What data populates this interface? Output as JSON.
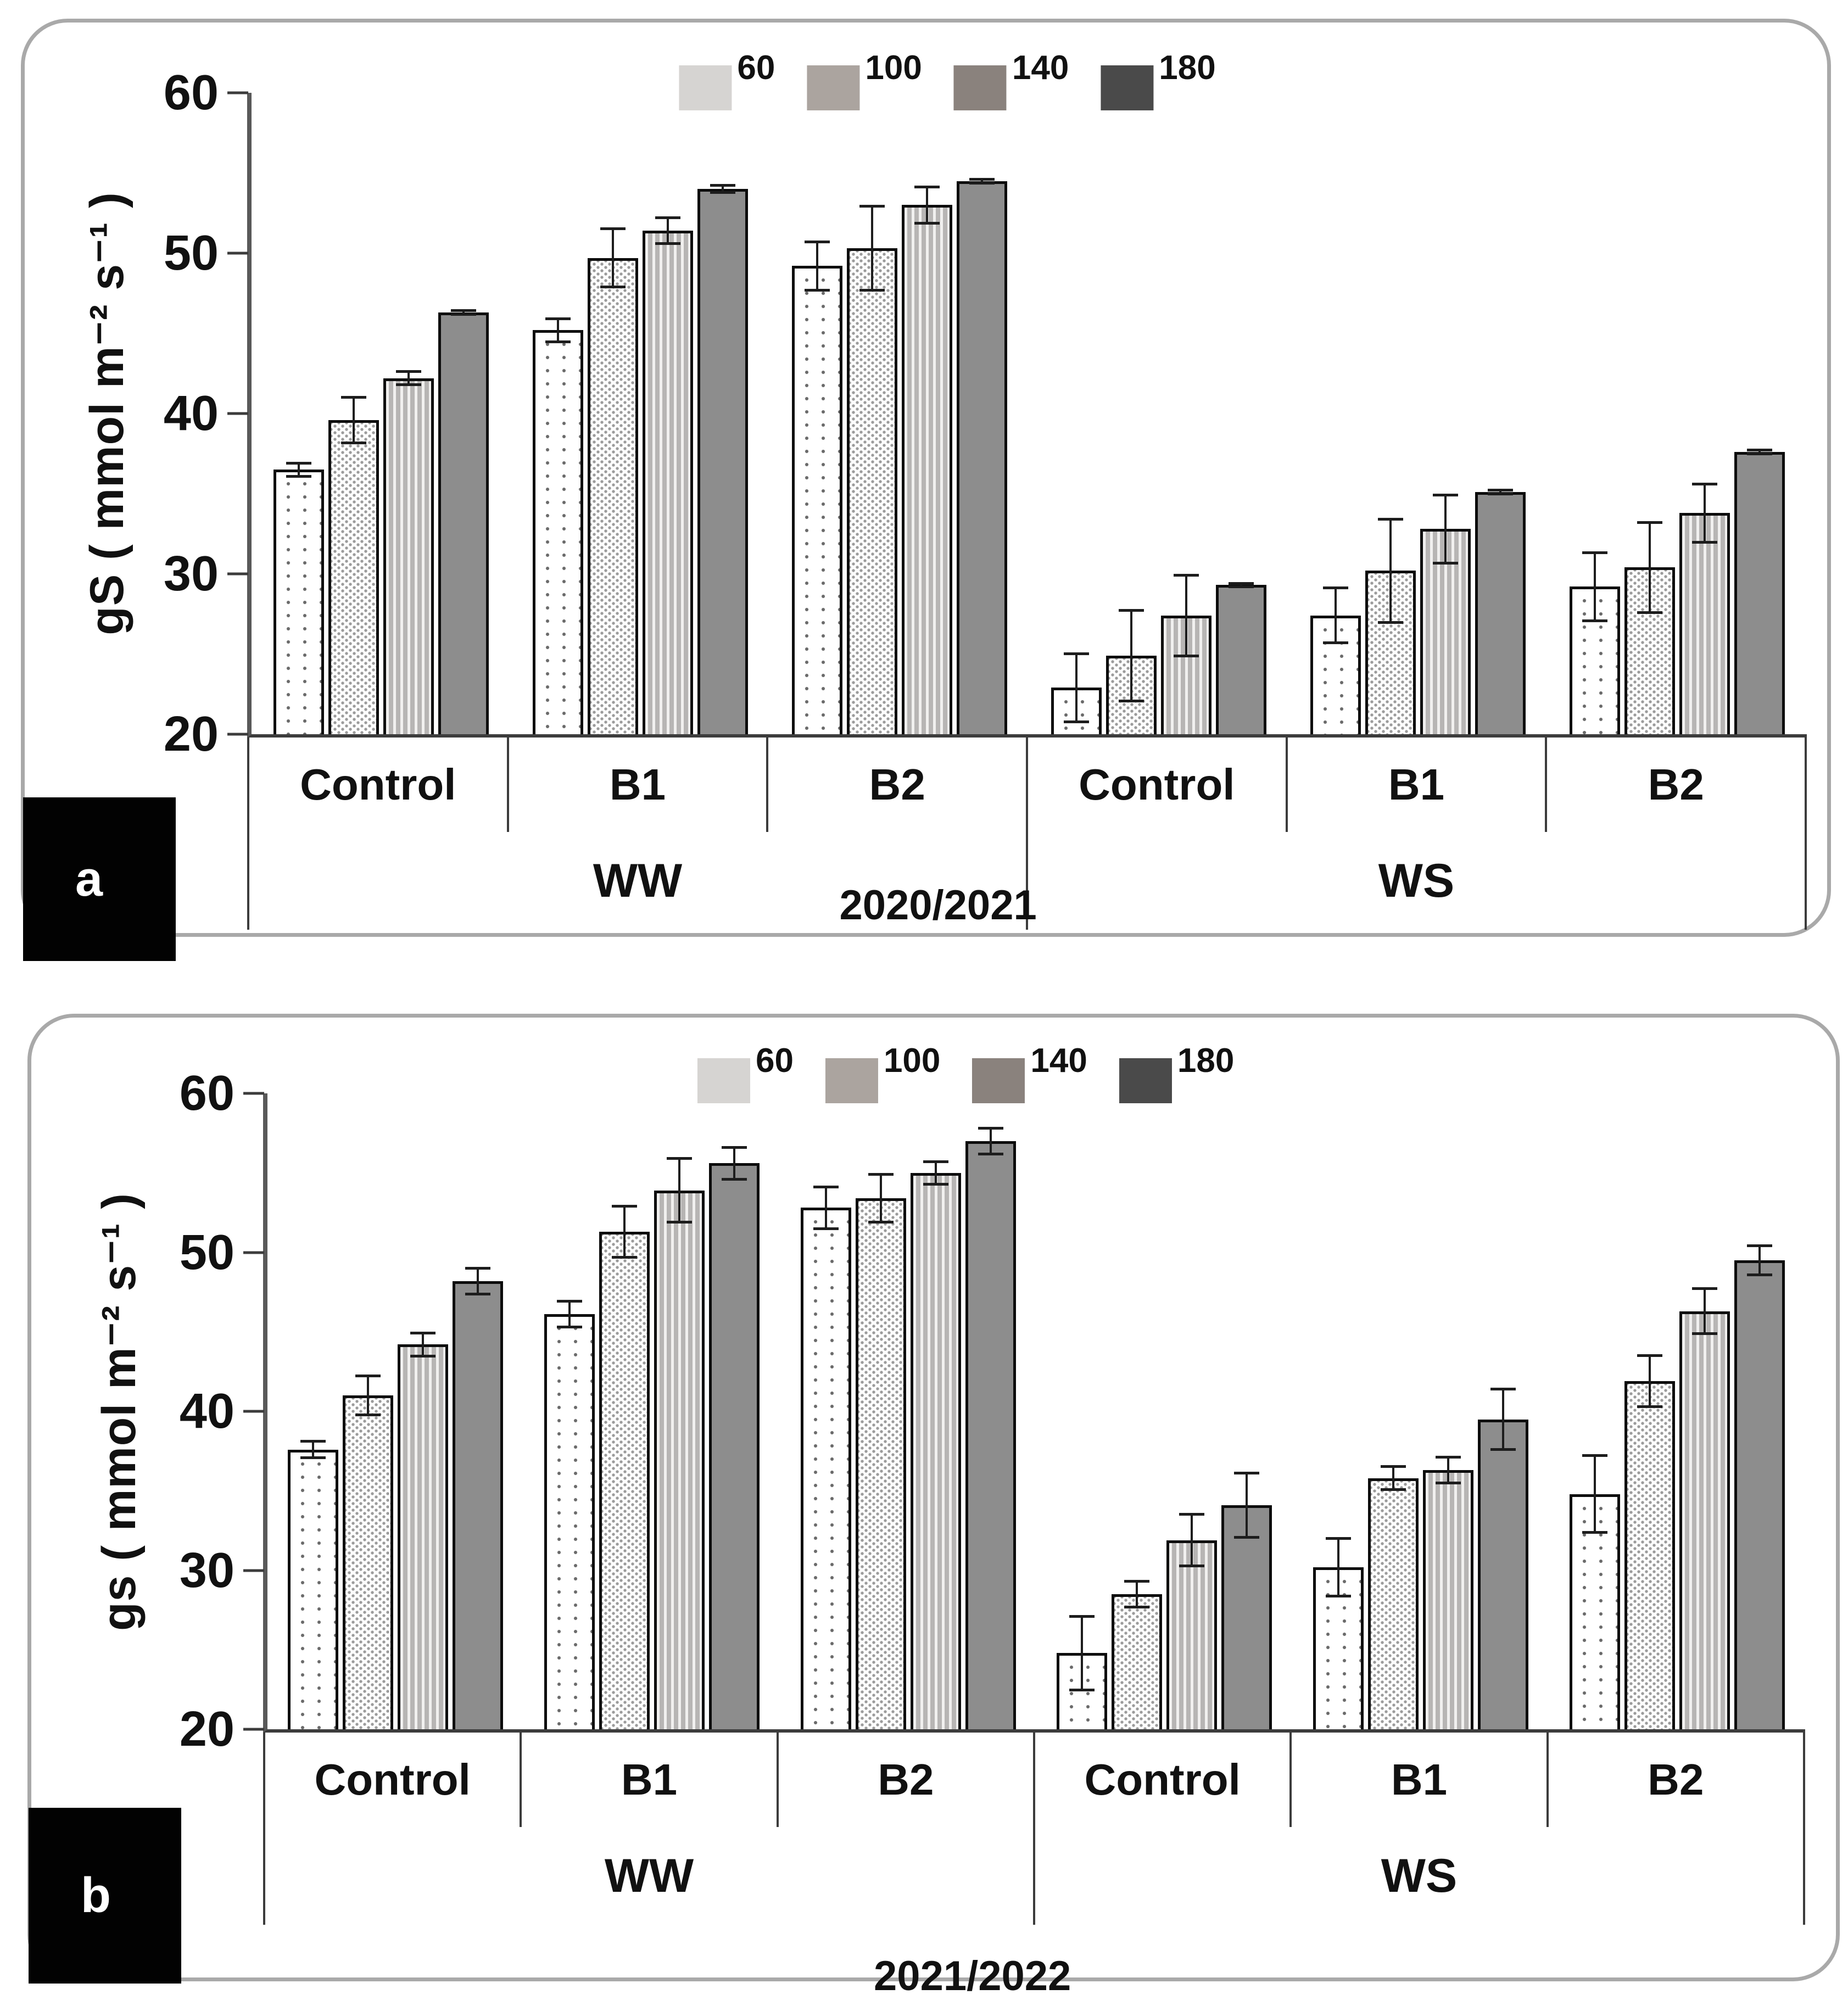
{
  "figure": {
    "panel_a_label": "a",
    "panel_b_label": "b"
  },
  "legend": {
    "entries": [
      {
        "label": "60",
        "color": "#d6d4d2"
      },
      {
        "label": "100",
        "color": "#aba49f"
      },
      {
        "label": "140",
        "color": "#8a827d"
      },
      {
        "label": "180",
        "color": "#4a4a4a"
      }
    ]
  },
  "bar_style_colors": {
    "outline": "#0c0c0c",
    "solid_bar": "#8d8d8d",
    "axis": "#595959",
    "panel_border": "#a9a9a9"
  },
  "chart_data": [
    {
      "type": "bar",
      "panel": "a",
      "ylabel": "gS  ( mmol m⁻² s⁻¹ )",
      "ylim": [
        20,
        60
      ],
      "ytick_labels": [
        "60",
        "50",
        "40",
        "30",
        "20"
      ],
      "grid": "off",
      "legend_position": "top-center",
      "legend_labels": [
        "60",
        "100",
        "140",
        "180"
      ],
      "group_labels": [
        "Control",
        "B1",
        "B2",
        "Control",
        "B1",
        "B2"
      ],
      "water_labels": [
        "WW",
        "WS"
      ],
      "year": "2020/2021",
      "series": [
        {
          "name": "60",
          "values": [
            36.5,
            45.2,
            49.2,
            22.9,
            27.4,
            29.2
          ],
          "errors": [
            0.5,
            0.8,
            1.6,
            2.2,
            1.8,
            2.2
          ]
        },
        {
          "name": "100",
          "values": [
            39.6,
            49.7,
            50.3,
            24.9,
            30.2,
            30.4
          ],
          "errors": [
            1.5,
            1.9,
            2.7,
            2.9,
            3.3,
            2.9
          ]
        },
        {
          "name": "140",
          "values": [
            42.2,
            51.4,
            53.0,
            27.4,
            32.8,
            33.8
          ],
          "errors": [
            0.5,
            0.9,
            1.2,
            2.6,
            2.2,
            1.9
          ]
        },
        {
          "name": "180",
          "values": [
            46.3,
            54.0,
            54.5,
            29.3,
            35.1,
            37.6
          ],
          "errors": [
            0.2,
            0.3,
            0.2,
            0.2,
            0.2,
            0.2
          ]
        }
      ]
    },
    {
      "type": "bar",
      "panel": "b",
      "ylabel": "gs ( mmol m⁻² s⁻¹ )",
      "ylim": [
        20,
        60
      ],
      "ytick_labels": [
        "60",
        "50",
        "40",
        "30",
        "20"
      ],
      "grid": "off",
      "legend_position": "top-center",
      "legend_labels": [
        "60",
        "100",
        "140",
        "180"
      ],
      "group_labels": [
        "Control",
        "B1",
        "B2",
        "Control",
        "B1",
        "B2"
      ],
      "water_labels": [
        "WW",
        "WS"
      ],
      "year": "2021/2022",
      "series": [
        {
          "name": "60",
          "values": [
            37.6,
            46.1,
            52.8,
            24.8,
            30.2,
            34.8
          ],
          "errors": [
            0.6,
            0.9,
            1.4,
            2.4,
            1.9,
            2.5
          ]
        },
        {
          "name": "100",
          "values": [
            41.0,
            51.3,
            53.4,
            28.5,
            35.8,
            41.9
          ],
          "errors": [
            1.3,
            1.7,
            1.6,
            0.9,
            0.8,
            1.7
          ]
        },
        {
          "name": "140",
          "values": [
            44.2,
            53.9,
            55.0,
            31.9,
            36.3,
            46.3
          ],
          "errors": [
            0.8,
            2.1,
            0.8,
            1.7,
            0.9,
            1.5
          ]
        },
        {
          "name": "180",
          "values": [
            48.2,
            55.6,
            57.0,
            34.1,
            39.5,
            49.5
          ],
          "errors": [
            0.9,
            1.1,
            0.9,
            2.1,
            2.0,
            1.0
          ]
        }
      ]
    }
  ]
}
